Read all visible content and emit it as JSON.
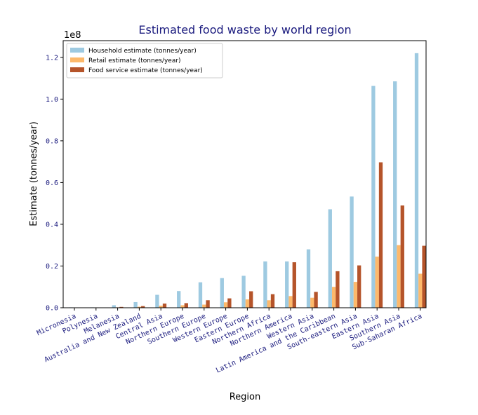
{
  "chart_data": {
    "type": "bar",
    "title": "Estimated food waste by world region",
    "xlabel": "Region",
    "ylabel": "Estimate (tonnes/year)",
    "offset_label": "1e8",
    "ylim": [
      0,
      1.28
    ],
    "yticks": [
      "0.0",
      "0.2",
      "0.4",
      "0.6",
      "0.8",
      "1.0",
      "1.2"
    ],
    "legend_position": "top-left",
    "categories": [
      "Micronesia",
      "Polynesia",
      "Melanesia",
      "Australia and New Zealand",
      "Central Asia",
      "Northern Europe",
      "Southern Europe",
      "Western Europe",
      "Eastern Europe",
      "Northern Africa",
      "Northern America",
      "Western Asia",
      "Latin America and the Caribbean",
      "South-eastern Asia",
      "Eastern Asia",
      "Southern Asia",
      "Sub-Saharan Africa"
    ],
    "series": [
      {
        "name": "Household estimate (tonnes/year)",
        "color": "#9ecae1",
        "values": [
          0.002,
          0.002,
          0.012,
          0.027,
          0.062,
          0.08,
          0.122,
          0.142,
          0.153,
          0.222,
          0.222,
          0.28,
          0.472,
          0.533,
          1.063,
          1.085,
          1.22
        ]
      },
      {
        "name": "Retail estimate (tonnes/year)",
        "color": "#fdb96b",
        "values": [
          0.0005,
          0.0005,
          0.002,
          0.005,
          0.01,
          0.012,
          0.015,
          0.026,
          0.04,
          0.036,
          0.056,
          0.048,
          0.1,
          0.124,
          0.245,
          0.3,
          0.163
        ]
      },
      {
        "name": "Food service estimate (tonnes/year)",
        "color": "#b5542a",
        "values": [
          0.001,
          0.001,
          0.004,
          0.008,
          0.02,
          0.022,
          0.036,
          0.045,
          0.079,
          0.065,
          0.218,
          0.076,
          0.175,
          0.203,
          0.697,
          0.49,
          0.297
        ]
      }
    ]
  }
}
